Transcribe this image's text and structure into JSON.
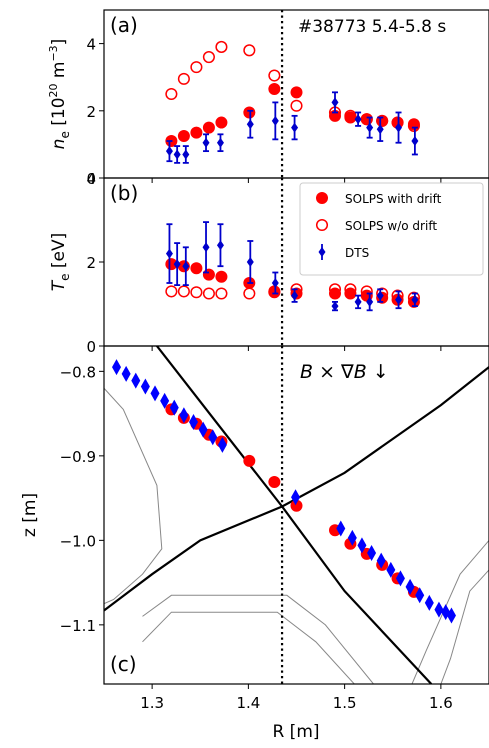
{
  "chart_data": [
    {
      "panel_label": "(a)",
      "type": "scatter",
      "annotation": "#38773 5.4-5.8 s",
      "ylabel": "n_e [10^20 m^-3]",
      "ylim": [
        0,
        5
      ],
      "yticks": [
        "0",
        "2",
        "4"
      ],
      "xlim": [
        1.25,
        1.65
      ],
      "grid": false,
      "vline_x": 1.435,
      "series": [
        {
          "name": "SOLPS with drift",
          "marker": "filled-circle",
          "color": "#ff0000",
          "points": [
            [
              1.32,
              1.1
            ],
            [
              1.333,
              1.25
            ],
            [
              1.346,
              1.35
            ],
            [
              1.359,
              1.5
            ],
            [
              1.372,
              1.65
            ],
            [
              1.401,
              1.95
            ],
            [
              1.427,
              2.65
            ],
            [
              1.45,
              2.55
            ],
            [
              1.49,
              1.85
            ],
            [
              1.506,
              1.8
            ],
            [
              1.523,
              1.75
            ],
            [
              1.539,
              1.7
            ],
            [
              1.555,
              1.65
            ],
            [
              1.572,
              1.6
            ]
          ]
        },
        {
          "name": "SOLPS w/o drift",
          "marker": "open-circle",
          "color": "#ff0000",
          "points": [
            [
              1.32,
              2.5
            ],
            [
              1.333,
              2.95
            ],
            [
              1.346,
              3.3
            ],
            [
              1.359,
              3.6
            ],
            [
              1.372,
              3.9
            ],
            [
              1.401,
              3.8
            ],
            [
              1.427,
              3.05
            ],
            [
              1.45,
              2.15
            ],
            [
              1.49,
              1.95
            ],
            [
              1.506,
              1.85
            ],
            [
              1.523,
              1.75
            ],
            [
              1.539,
              1.7
            ],
            [
              1.555,
              1.65
            ],
            [
              1.572,
              1.55
            ]
          ]
        },
        {
          "name": "DTS",
          "marker": "diamond-errorbar",
          "color": "#0000cc",
          "points": [
            [
              1.318,
              0.8,
              0.3
            ],
            [
              1.326,
              0.7,
              0.25
            ],
            [
              1.335,
              0.7,
              0.25
            ],
            [
              1.356,
              1.05,
              0.25
            ],
            [
              1.371,
              1.05,
              0.25
            ],
            [
              1.402,
              1.6,
              0.4
            ],
            [
              1.428,
              1.7,
              0.55
            ],
            [
              1.448,
              1.5,
              0.35
            ],
            [
              1.49,
              2.25,
              0.3
            ],
            [
              1.514,
              1.75,
              0.2
            ],
            [
              1.526,
              1.5,
              0.3
            ],
            [
              1.537,
              1.45,
              0.35
            ],
            [
              1.556,
              1.5,
              0.45
            ],
            [
              1.573,
              1.1,
              0.4
            ]
          ]
        }
      ]
    },
    {
      "panel_label": "(b)",
      "type": "scatter",
      "ylabel": "T_e [eV]",
      "ylim": [
        0,
        4
      ],
      "yticks": [
        "0",
        "2",
        "4"
      ],
      "xlim": [
        1.25,
        1.65
      ],
      "grid": false,
      "legend_position": "top-right",
      "legend": [
        "SOLPS with drift",
        "SOLPS w/o drift",
        "DTS"
      ],
      "vline_x": 1.435,
      "series": [
        {
          "name": "SOLPS with drift",
          "marker": "filled-circle",
          "color": "#ff0000",
          "points": [
            [
              1.32,
              1.95
            ],
            [
              1.333,
              1.9
            ],
            [
              1.346,
              1.85
            ],
            [
              1.359,
              1.7
            ],
            [
              1.372,
              1.65
            ],
            [
              1.401,
              1.5
            ],
            [
              1.427,
              1.3
            ],
            [
              1.45,
              1.25
            ],
            [
              1.49,
              1.25
            ],
            [
              1.506,
              1.25
            ],
            [
              1.523,
              1.2
            ],
            [
              1.539,
              1.15
            ],
            [
              1.555,
              1.1
            ],
            [
              1.572,
              1.05
            ]
          ]
        },
        {
          "name": "SOLPS w/o drift",
          "marker": "open-circle",
          "color": "#ff0000",
          "points": [
            [
              1.32,
              1.3
            ],
            [
              1.333,
              1.3
            ],
            [
              1.346,
              1.28
            ],
            [
              1.359,
              1.25
            ],
            [
              1.372,
              1.25
            ],
            [
              1.401,
              1.25
            ],
            [
              1.427,
              1.28
            ],
            [
              1.45,
              1.35
            ],
            [
              1.49,
              1.35
            ],
            [
              1.506,
              1.35
            ],
            [
              1.523,
              1.3
            ],
            [
              1.539,
              1.25
            ],
            [
              1.555,
              1.2
            ],
            [
              1.572,
              1.15
            ]
          ]
        },
        {
          "name": "DTS",
          "marker": "diamond-errorbar",
          "color": "#0000cc",
          "points": [
            [
              1.318,
              2.2,
              0.7
            ],
            [
              1.326,
              1.95,
              0.5
            ],
            [
              1.335,
              1.9,
              0.45
            ],
            [
              1.356,
              2.35,
              0.6
            ],
            [
              1.371,
              2.4,
              0.5
            ],
            [
              1.402,
              2.0,
              0.5
            ],
            [
              1.428,
              1.5,
              0.25
            ],
            [
              1.448,
              1.2,
              0.15
            ],
            [
              1.49,
              0.95,
              0.1
            ],
            [
              1.514,
              1.05,
              0.15
            ],
            [
              1.526,
              1.05,
              0.2
            ],
            [
              1.537,
              1.2,
              0.15
            ],
            [
              1.556,
              1.1,
              0.2
            ],
            [
              1.573,
              1.1,
              0.15
            ]
          ]
        }
      ]
    },
    {
      "panel_label": "(c)",
      "type": "scatter",
      "annotation": "B × ∇B ↓",
      "xlabel": "R [m]",
      "ylabel": "z [m]",
      "xlim": [
        1.25,
        1.65
      ],
      "ylim": [
        -1.17,
        -0.77
      ],
      "xticks": [
        "1.3",
        "1.4",
        "1.5",
        "1.6"
      ],
      "yticks": [
        "−0.8",
        "−0.9",
        "−1.0",
        "−1.1"
      ],
      "grid": false,
      "vline_x": 1.435,
      "separatrix_legs": [
        [
          [
            1.305,
            -0.77
          ],
          [
            1.37,
            -0.865
          ],
          [
            1.435,
            -0.96
          ],
          [
            1.5,
            -1.06
          ],
          [
            1.59,
            -1.17
          ]
        ],
        [
          [
            1.25,
            -1.083
          ],
          [
            1.3,
            -1.04
          ],
          [
            1.35,
            -1.0
          ],
          [
            1.435,
            -0.96
          ],
          [
            1.5,
            -0.92
          ],
          [
            1.6,
            -0.84
          ],
          [
            1.65,
            -0.795
          ]
        ]
      ],
      "wall_outlines": [
        [
          [
            1.25,
            -0.82
          ],
          [
            1.27,
            -0.845
          ],
          [
            1.305,
            -0.935
          ],
          [
            1.31,
            -1.01
          ],
          [
            1.29,
            -1.04
          ],
          [
            1.26,
            -1.07
          ],
          [
            1.25,
            -1.075
          ]
        ],
        [
          [
            1.29,
            -1.09
          ],
          [
            1.32,
            -1.065
          ],
          [
            1.44,
            -1.065
          ],
          [
            1.48,
            -1.1
          ],
          [
            1.53,
            -1.17
          ]
        ],
        [
          [
            1.29,
            -1.12
          ],
          [
            1.32,
            -1.085
          ],
          [
            1.43,
            -1.085
          ],
          [
            1.47,
            -1.12
          ],
          [
            1.51,
            -1.17
          ]
        ],
        [
          [
            1.6,
            -1.17
          ],
          [
            1.61,
            -1.14
          ],
          [
            1.63,
            -1.06
          ],
          [
            1.65,
            -1.035
          ]
        ],
        [
          [
            1.57,
            -1.17
          ],
          [
            1.585,
            -1.13
          ],
          [
            1.62,
            -1.04
          ],
          [
            1.65,
            -1.0
          ]
        ]
      ],
      "series": [
        {
          "name": "SOLPS with drift",
          "marker": "filled-circle",
          "color": "#ff0000",
          "points": [
            [
              1.32,
              -0.845
            ],
            [
              1.333,
              -0.855
            ],
            [
              1.346,
              -0.862
            ],
            [
              1.359,
              -0.875
            ],
            [
              1.372,
              -0.883
            ],
            [
              1.401,
              -0.906
            ],
            [
              1.427,
              -0.931
            ],
            [
              1.45,
              -0.959
            ],
            [
              1.49,
              -0.988
            ],
            [
              1.506,
              -1.004
            ],
            [
              1.523,
              -1.016
            ],
            [
              1.539,
              -1.029
            ],
            [
              1.555,
              -1.045
            ],
            [
              1.572,
              -1.061
            ]
          ]
        },
        {
          "name": "DTS",
          "marker": "diamond",
          "color": "#0000ff",
          "points": [
            [
              1.263,
              -0.795
            ],
            [
              1.273,
              -0.803
            ],
            [
              1.283,
              -0.811
            ],
            [
              1.293,
              -0.818
            ],
            [
              1.303,
              -0.826
            ],
            [
              1.313,
              -0.835
            ],
            [
              1.323,
              -0.843
            ],
            [
              1.333,
              -0.852
            ],
            [
              1.343,
              -0.86
            ],
            [
              1.353,
              -0.869
            ],
            [
              1.363,
              -0.878
            ],
            [
              1.373,
              -0.887
            ],
            [
              1.449,
              -0.949
            ],
            [
              1.496,
              -0.986
            ],
            [
              1.508,
              -0.997
            ],
            [
              1.518,
              -1.006
            ],
            [
              1.528,
              -1.015
            ],
            [
              1.538,
              -1.024
            ],
            [
              1.548,
              -1.035
            ],
            [
              1.558,
              -1.045
            ],
            [
              1.568,
              -1.055
            ],
            [
              1.578,
              -1.065
            ],
            [
              1.588,
              -1.074
            ],
            [
              1.598,
              -1.082
            ],
            [
              1.605,
              -1.085
            ],
            [
              1.611,
              -1.089
            ]
          ]
        }
      ]
    }
  ]
}
